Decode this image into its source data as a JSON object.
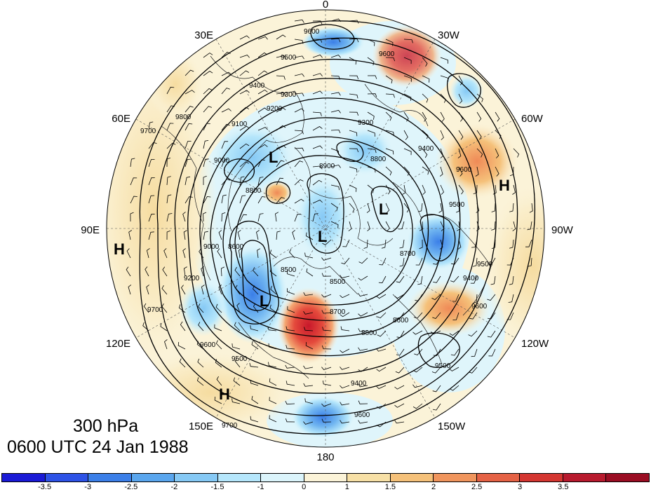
{
  "title": {
    "level": "300 hPa",
    "time": "0600 UTC 24 Jan 1988"
  },
  "longitude_labels": [
    "0",
    "30W",
    "60W",
    "90W",
    "120W",
    "150W",
    "180",
    "150E",
    "120E",
    "90E",
    "60E",
    "30E"
  ],
  "contour_labels": [
    "9600",
    "9500",
    "9400",
    "9300",
    "9200",
    "9100",
    "9000",
    "8900",
    "8800",
    "8700",
    "8600",
    "8500",
    "9700",
    "9800"
  ],
  "pressure_centers": [
    {
      "label": "H",
      "name": "high-center-north-atlantic"
    },
    {
      "label": "H",
      "name": "high-center-asia-west"
    },
    {
      "label": "H",
      "name": "high-center-pacific"
    },
    {
      "label": "L",
      "name": "low-center-europe"
    },
    {
      "label": "L",
      "name": "low-center-pole"
    },
    {
      "label": "L",
      "name": "low-center-canada"
    },
    {
      "label": "L",
      "name": "low-center-siberia"
    }
  ],
  "colorbar": {
    "colors": [
      "#1a1ad6",
      "#2d52e6",
      "#3b7fe8",
      "#5aa6ee",
      "#86c9f5",
      "#b5e6fb",
      "#dbf4fb",
      "#fbf3d8",
      "#f7e0a6",
      "#f5c17a",
      "#f0955d",
      "#e56245",
      "#d43631",
      "#b81a2e",
      "#9a0d23"
    ],
    "labels": [
      "-3.5",
      "-3",
      "-2.5",
      "-2",
      "-1.5",
      "-1",
      "0",
      "1",
      "1.5",
      "2",
      "2.5",
      "3",
      "3.5"
    ]
  }
}
